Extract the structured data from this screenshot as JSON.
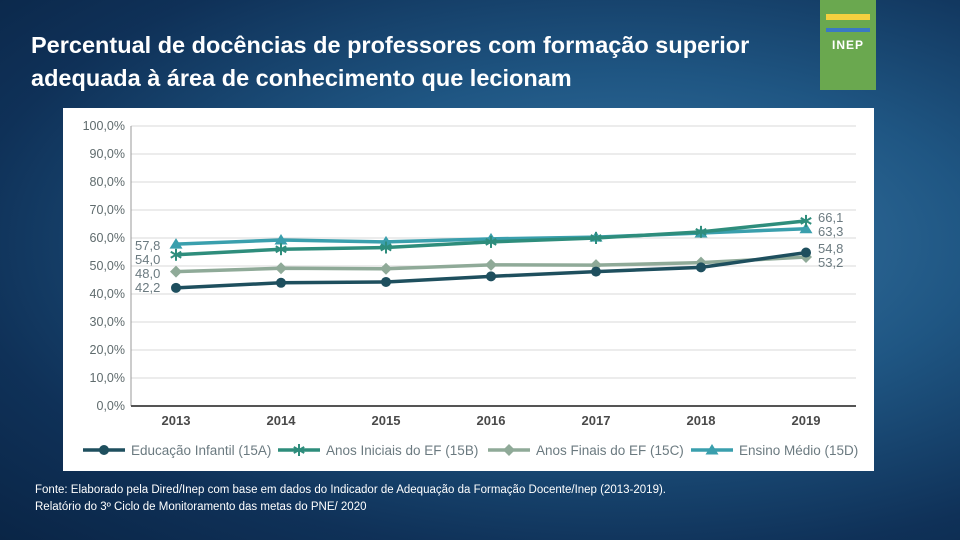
{
  "title_line1": "Percentual de docências de professores com formação superior",
  "title_line2": "adequada à área de conhecimento que lecionam",
  "logo_text": "INEP",
  "source_line1": "Fonte: Elaborado pela Dired/Inep com base em dados do Indicador de Adequação da Formação Docente/Inep (2013-2019).",
  "source_line2": "Relatório do 3º Ciclo de Monitoramento das metas do PNE/ 2020",
  "chart_data": {
    "type": "line",
    "title": "",
    "xlabel": "",
    "ylabel": "",
    "categories": [
      "2013",
      "2014",
      "2015",
      "2016",
      "2017",
      "2018",
      "2019"
    ],
    "ylim": [
      0,
      100
    ],
    "yticks": [
      0,
      10,
      20,
      30,
      40,
      50,
      60,
      70,
      80,
      90,
      100
    ],
    "ytick_labels": [
      "0,0%",
      "10,0%",
      "20,0%",
      "30,0%",
      "40,0%",
      "50,0%",
      "60,0%",
      "70,0%",
      "80,0%",
      "90,0%",
      "100,0%"
    ],
    "grid": true,
    "legend_position": "bottom",
    "series": [
      {
        "name": "Educação Infantil (15A)",
        "color": "#1e4f5e",
        "marker": "circle",
        "values": [
          42.2,
          44.0,
          44.3,
          46.3,
          48.0,
          49.5,
          54.8
        ],
        "start_label": "42,2",
        "end_label": "54,8"
      },
      {
        "name": "Anos Iniciais do EF (15B)",
        "color": "#2e8d7c",
        "marker": "asterisk",
        "values": [
          54.0,
          56.0,
          56.6,
          58.6,
          60.0,
          62.2,
          66.1
        ],
        "start_label": "54,0",
        "end_label": "66,1"
      },
      {
        "name": "Anos Finais do EF (15C)",
        "color": "#8faa98",
        "marker": "diamond",
        "values": [
          48.0,
          49.2,
          49.0,
          50.4,
          50.3,
          51.2,
          53.2
        ],
        "start_label": "48,0",
        "end_label": "53,2"
      },
      {
        "name": "Ensino Médio (15D)",
        "color": "#3a9fad",
        "marker": "triangle",
        "values": [
          57.8,
          59.3,
          58.6,
          59.7,
          60.3,
          61.8,
          63.3
        ],
        "start_label": "57,8",
        "end_label": "63,3"
      }
    ]
  }
}
